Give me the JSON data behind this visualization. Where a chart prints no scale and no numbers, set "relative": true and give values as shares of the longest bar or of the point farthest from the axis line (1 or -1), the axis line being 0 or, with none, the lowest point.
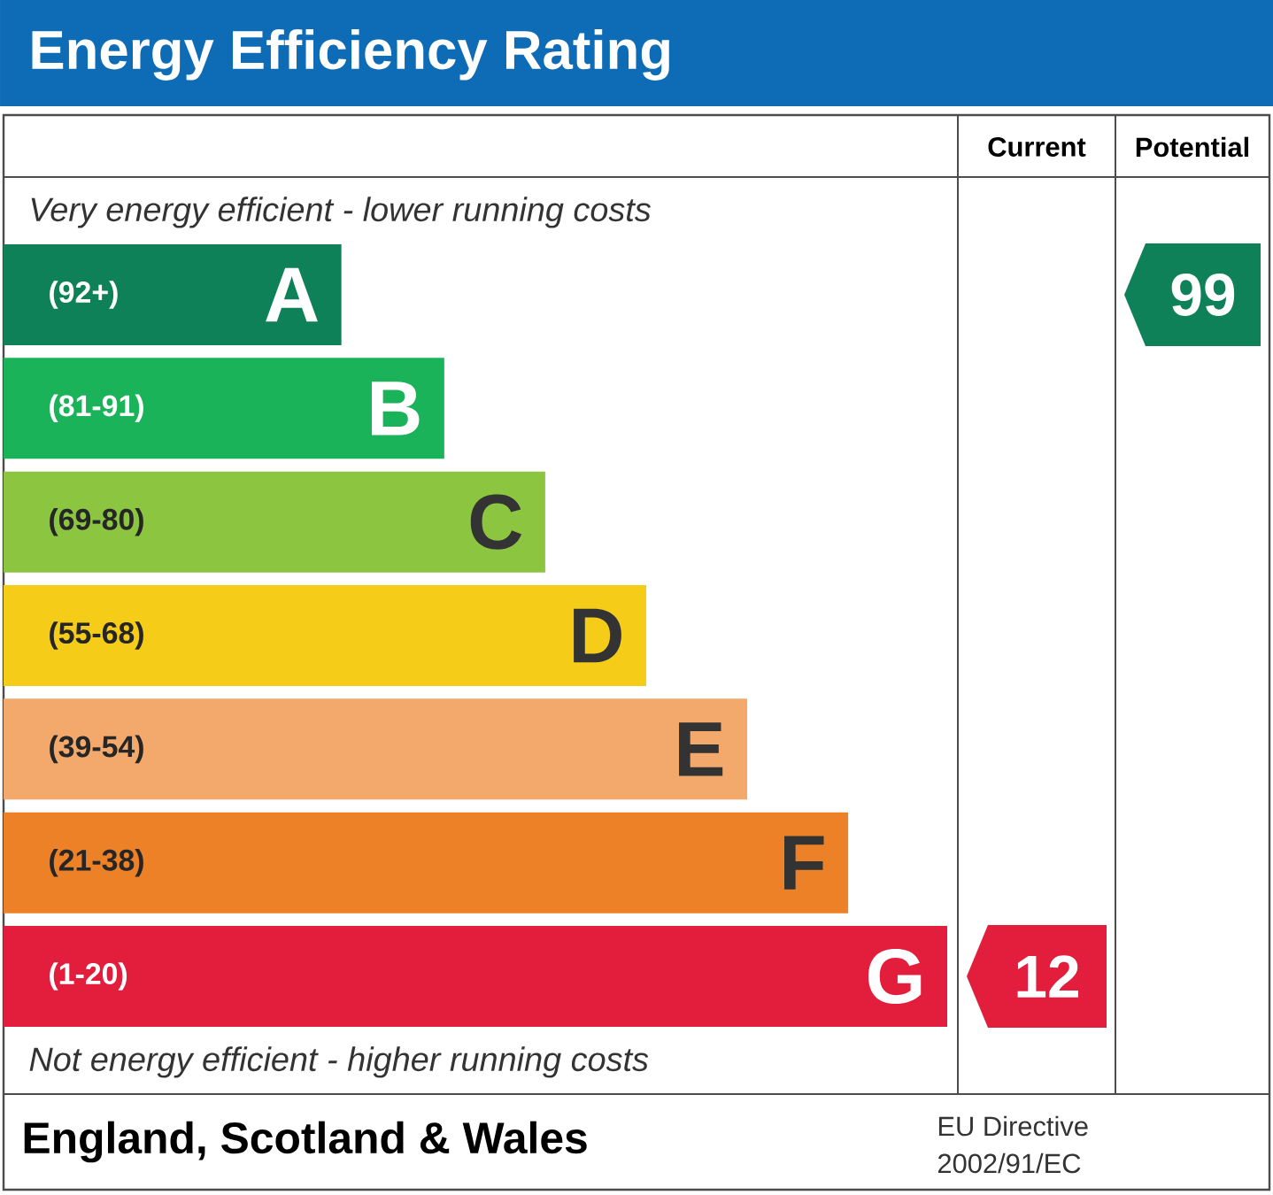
{
  "chart_data": {
    "type": "bar",
    "orientation": "horizontal",
    "relative": true,
    "title": "Energy Efficiency Rating",
    "categories": [
      "A",
      "B",
      "C",
      "D",
      "E",
      "F",
      "G"
    ],
    "values": [
      0.358,
      0.467,
      0.574,
      0.681,
      0.788,
      0.895,
      1
    ],
    "colors": [
      "#0f8158",
      "#1bb35a",
      "#8cc540",
      "#f5cc18",
      "#f2a96b",
      "#ec8127",
      "#e31d3c"
    ],
    "annotations": [
      "Current",
      "Potential",
      "12",
      "99",
      "Very energy efficient - lower running costs",
      "Not energy efficient - higher running costs",
      "England, Scotland & Wales",
      "EU Directive",
      "2002/91/EC",
      "(92+)",
      "(81-91)",
      "(69-80)",
      "(55-68)",
      "(39-54)",
      "(21-38)",
      "(1-20)"
    ]
  }
}
